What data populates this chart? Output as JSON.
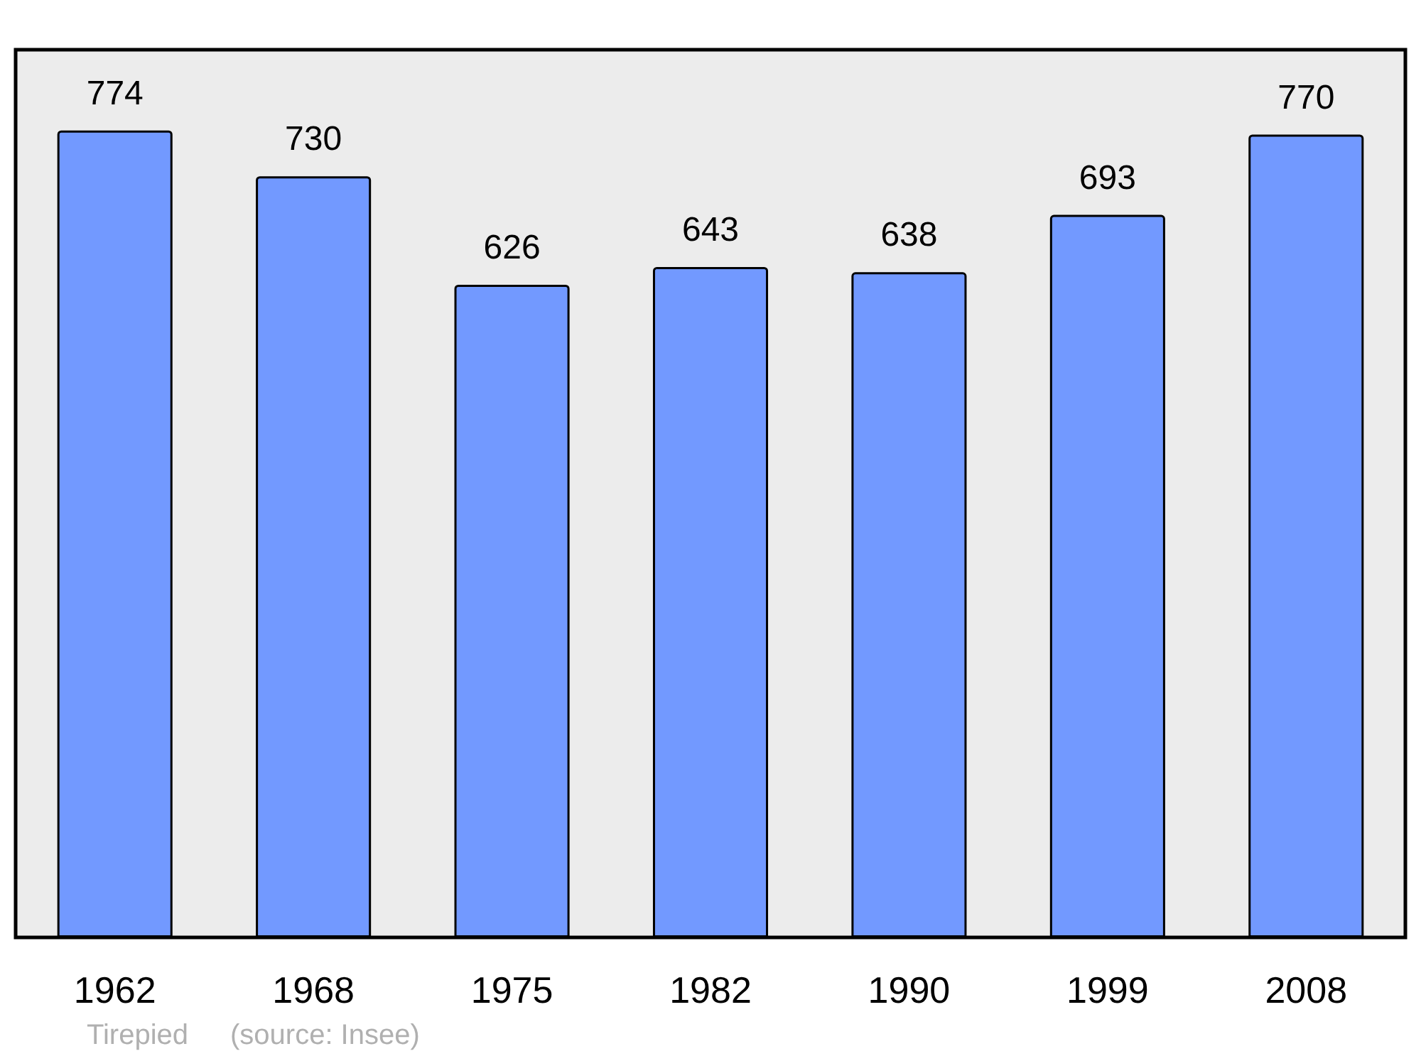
{
  "chart_data": {
    "type": "bar",
    "categories": [
      "1962",
      "1968",
      "1975",
      "1982",
      "1990",
      "1999",
      "2008"
    ],
    "values": [
      774,
      730,
      626,
      643,
      638,
      693,
      770
    ],
    "color": "#7299ff",
    "data_labels": true,
    "annotations": [
      "Tirepied",
      "(source: Insee)"
    ]
  }
}
